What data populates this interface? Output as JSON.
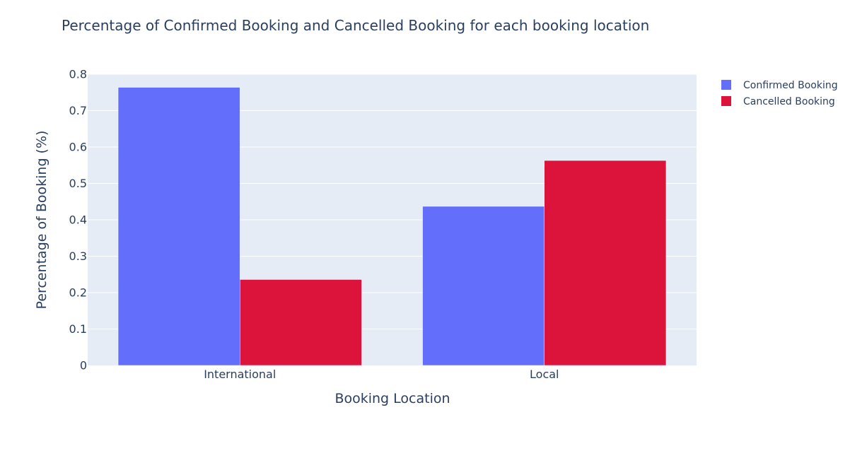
{
  "chart_data": {
    "type": "bar",
    "title": "Percentage of Confirmed Booking and Cancelled Booking for each booking location",
    "xlabel": "Booking Location",
    "ylabel": "Percentage of Booking (%)",
    "categories": [
      "International",
      "Local"
    ],
    "series": [
      {
        "name": "Confirmed Booking",
        "values": [
          0.764,
          0.437
        ],
        "color": "#636efa"
      },
      {
        "name": "Cancelled Booking",
        "values": [
          0.236,
          0.563
        ],
        "color": "#dc143c"
      }
    ],
    "ylim": [
      0,
      0.8
    ],
    "yticks": [
      0,
      0.1,
      0.2,
      0.3,
      0.4,
      0.5,
      0.6,
      0.7,
      0.8
    ],
    "ytick_labels": [
      "0",
      "0.1",
      "0.2",
      "0.3",
      "0.4",
      "0.5",
      "0.6",
      "0.7",
      "0.8"
    ],
    "grid": true,
    "legend_position": "top-right",
    "plot_background": "#e5ecf6"
  }
}
